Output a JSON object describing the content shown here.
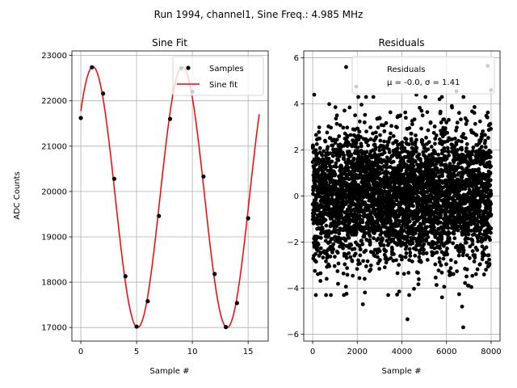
{
  "suptitle": "Run 1994, channel1, Sine Freq.: 4.985 MHz",
  "chart_data": [
    {
      "type": "line",
      "title": "Sine Fit",
      "xlabel": "Sample #",
      "ylabel": "ADC Counts",
      "xlim": [
        -0.8,
        16.8
      ],
      "ylim": [
        16700,
        23100
      ],
      "xticks": [
        "0",
        "5",
        "10",
        "15"
      ],
      "xtick_values": [
        0,
        5,
        10,
        15
      ],
      "yticks": [
        "17000",
        "18000",
        "19000",
        "20000",
        "21000",
        "22000",
        "23000"
      ],
      "ytick_values": [
        17000,
        18000,
        19000,
        20000,
        21000,
        22000,
        23000
      ],
      "grid": true,
      "legend_position": "top-right",
      "series": [
        {
          "name": "Samples",
          "kind": "scatter",
          "color": "#000000",
          "x": [
            0,
            1,
            2,
            3,
            4,
            5,
            6,
            7,
            8,
            9,
            10,
            11,
            12,
            13,
            14,
            15
          ],
          "y": [
            21620,
            22740,
            22160,
            20280,
            18130,
            17020,
            17580,
            19460,
            21600,
            22720,
            22200,
            20330,
            18180,
            17010,
            17540,
            19410
          ]
        },
        {
          "name": "Sine fit",
          "kind": "line",
          "color": "#ff0000",
          "model": {
            "offset": 19875,
            "amplitude": 2875,
            "period": 8.02,
            "phase": 0.721,
            "x_start": 0,
            "x_end": 16
          }
        }
      ]
    },
    {
      "type": "scatter",
      "title": "Residuals",
      "xlabel": "Sample #",
      "ylabel": "",
      "xlim": [
        -400,
        8400
      ],
      "ylim": [
        -6.3,
        6.3
      ],
      "xticks": [
        "0",
        "2000",
        "4000",
        "6000",
        "8000"
      ],
      "xtick_values": [
        0,
        2000,
        4000,
        6000,
        8000
      ],
      "yticks": [
        "−6",
        "−4",
        "−2",
        "0",
        "2",
        "4",
        "6"
      ],
      "ytick_values": [
        -6,
        -4,
        -2,
        0,
        2,
        4,
        6
      ],
      "grid": true,
      "legend_position": "top-right",
      "legend_title": "Residuals",
      "legend_stats": "μ = -0.0, σ = 1.41",
      "series": [
        {
          "name": "Residuals",
          "color": "#000000",
          "n_points": 8000,
          "mean": 0.0,
          "std": 1.41,
          "x_range": [
            0,
            8000
          ],
          "outliers": [
            {
              "x": 1500,
              "y": 5.6
            },
            {
              "x": 7850,
              "y": 5.65
            },
            {
              "x": 1950,
              "y": 4.75
            },
            {
              "x": 6450,
              "y": 4.55
            },
            {
              "x": 8000,
              "y": 4.6
            },
            {
              "x": 70,
              "y": 4.4
            },
            {
              "x": 4650,
              "y": 4.4
            },
            {
              "x": 2250,
              "y": -4.7
            },
            {
              "x": 4250,
              "y": -5.35
            },
            {
              "x": 6750,
              "y": -5.7
            },
            {
              "x": 5800,
              "y": -4.4
            },
            {
              "x": 6700,
              "y": -4.8
            },
            {
              "x": 600,
              "y": -4.3
            },
            {
              "x": 1400,
              "y": -4.3
            }
          ]
        }
      ]
    }
  ]
}
